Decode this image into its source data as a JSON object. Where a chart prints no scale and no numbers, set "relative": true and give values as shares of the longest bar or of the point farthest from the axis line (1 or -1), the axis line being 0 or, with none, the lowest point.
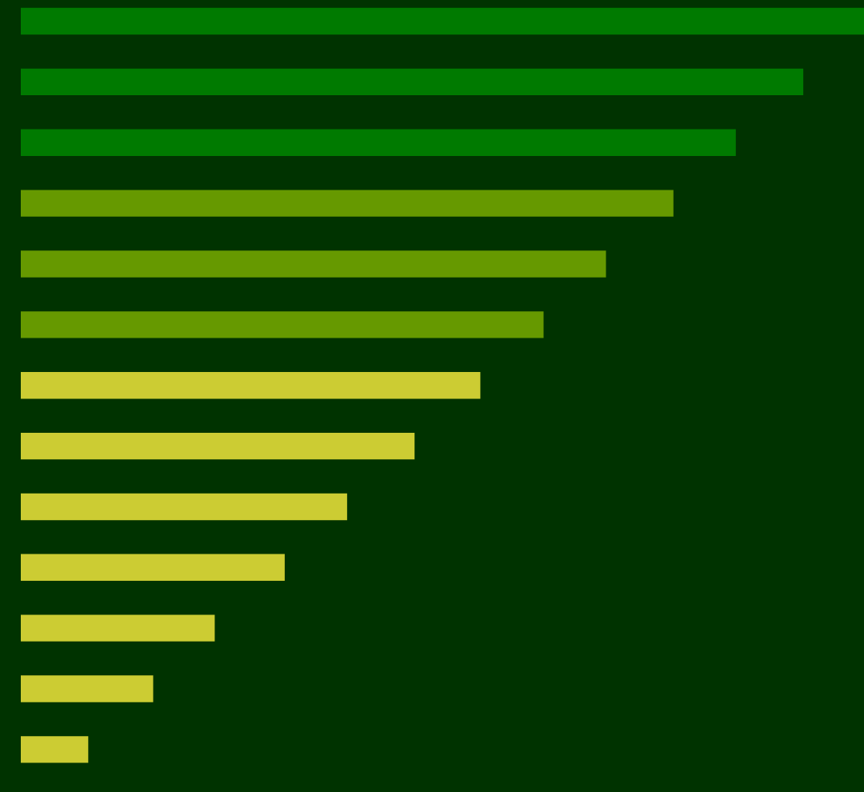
{
  "chart_data": {
    "type": "bar",
    "orientation": "horizontal",
    "relative": true,
    "categories": [
      null,
      null,
      null,
      null,
      null,
      null,
      null,
      null,
      null,
      null,
      null,
      null,
      null
    ],
    "values": [
      1,
      0.928,
      0.848,
      0.774,
      0.694,
      0.62,
      0.545,
      0.467,
      0.387,
      0.313,
      0.23,
      0.157,
      0.08
    ],
    "colors": [
      "#007a00",
      "#007a00",
      "#007a00",
      "#669900",
      "#669900",
      "#669900",
      "#cccc33",
      "#cccc33",
      "#cccc33",
      "#cccc33",
      "#cccc33",
      "#cccc33",
      "#cccc33"
    ],
    "grid": false,
    "legend": false
  }
}
